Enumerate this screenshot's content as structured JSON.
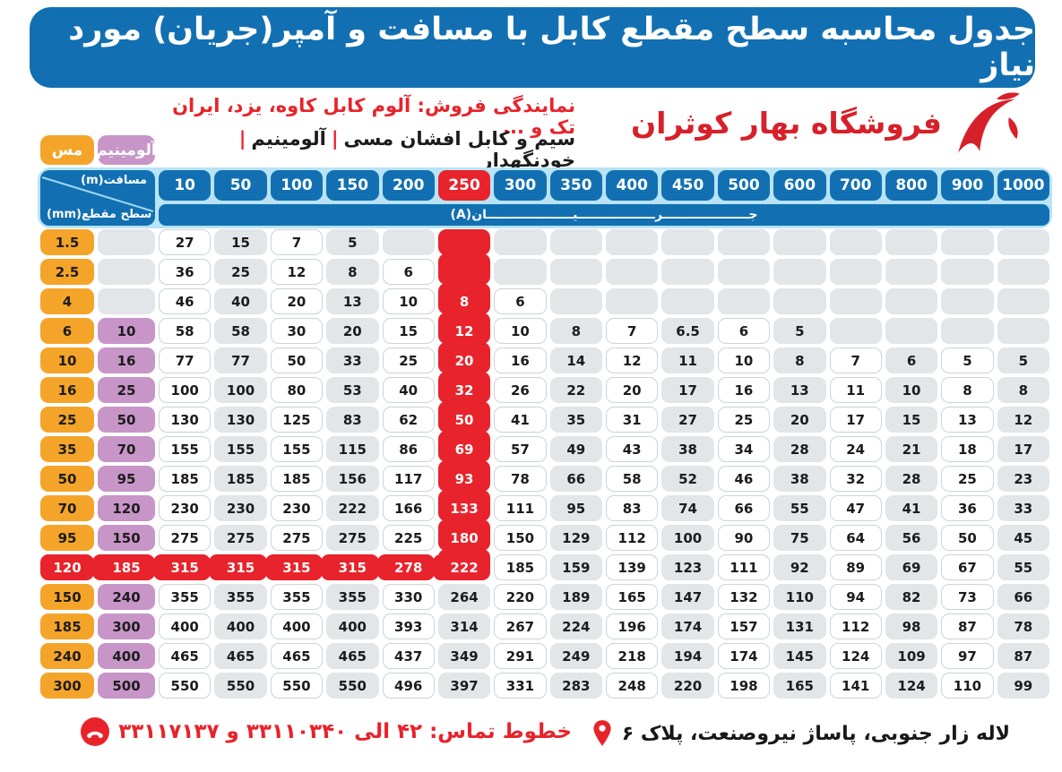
{
  "title": "جدول محاسبه سطح مقطع کابل با مسافت و آمپر(جریان) مورد نیاز",
  "header": {
    "dealer_line": "نمایندگی فروش: آلوم کابل کاوه، یزد، ایران تک و ...",
    "products_parts": [
      "سیم و کابل افشان مسی",
      "آلومینیم",
      "خودنگهدار"
    ],
    "products_separator": "|",
    "store_name": "فروشگاه بهار کوثران"
  },
  "table": {
    "copper_label": "مس",
    "aluminum_label": "آلومینیم",
    "corner_top": "مسافت(m)",
    "corner_bottom": "سطح مقطع(mm)",
    "current_label": "جــــــــــــــــــــرــــــــــــــــــیــــــــــــــــــــان(A)",
    "distances": [
      "10",
      "50",
      "100",
      "150",
      "200",
      "250",
      "300",
      "350",
      "400",
      "450",
      "500",
      "600",
      "700",
      "800",
      "900",
      "1000"
    ],
    "highlight": {
      "col_index": 5,
      "row_index": 11
    },
    "rows": [
      {
        "cu": "1.5",
        "al": "",
        "values": [
          "27",
          "15",
          "7",
          "5",
          "",
          "",
          "",
          "",
          "",
          "",
          "",
          "",
          "",
          "",
          "",
          ""
        ]
      },
      {
        "cu": "2.5",
        "al": "",
        "values": [
          "36",
          "25",
          "12",
          "8",
          "6",
          "",
          "",
          "",
          "",
          "",
          "",
          "",
          "",
          "",
          "",
          ""
        ]
      },
      {
        "cu": "4",
        "al": "",
        "values": [
          "46",
          "40",
          "20",
          "13",
          "10",
          "8",
          "6",
          "",
          "",
          "",
          "",
          "",
          "",
          "",
          "",
          ""
        ]
      },
      {
        "cu": "6",
        "al": "10",
        "values": [
          "58",
          "58",
          "30",
          "20",
          "15",
          "12",
          "10",
          "8",
          "7",
          "6.5",
          "6",
          "5",
          "",
          "",
          "",
          ""
        ]
      },
      {
        "cu": "10",
        "al": "16",
        "values": [
          "77",
          "77",
          "50",
          "33",
          "25",
          "20",
          "16",
          "14",
          "12",
          "11",
          "10",
          "8",
          "7",
          "6",
          "5",
          "5"
        ]
      },
      {
        "cu": "16",
        "al": "25",
        "values": [
          "100",
          "100",
          "80",
          "53",
          "40",
          "32",
          "26",
          "22",
          "20",
          "17",
          "16",
          "13",
          "11",
          "10",
          "8",
          "8"
        ]
      },
      {
        "cu": "25",
        "al": "50",
        "values": [
          "130",
          "130",
          "125",
          "83",
          "62",
          "50",
          "41",
          "35",
          "31",
          "27",
          "25",
          "20",
          "17",
          "15",
          "13",
          "12"
        ]
      },
      {
        "cu": "35",
        "al": "70",
        "values": [
          "155",
          "155",
          "155",
          "115",
          "86",
          "69",
          "57",
          "49",
          "43",
          "38",
          "34",
          "28",
          "24",
          "21",
          "18",
          "17"
        ]
      },
      {
        "cu": "50",
        "al": "95",
        "values": [
          "185",
          "185",
          "185",
          "156",
          "117",
          "93",
          "78",
          "66",
          "58",
          "52",
          "46",
          "38",
          "32",
          "28",
          "25",
          "23"
        ]
      },
      {
        "cu": "70",
        "al": "120",
        "values": [
          "230",
          "230",
          "230",
          "222",
          "166",
          "133",
          "111",
          "95",
          "83",
          "74",
          "66",
          "55",
          "47",
          "41",
          "36",
          "33"
        ]
      },
      {
        "cu": "95",
        "al": "150",
        "values": [
          "275",
          "275",
          "275",
          "275",
          "225",
          "180",
          "150",
          "129",
          "112",
          "100",
          "90",
          "75",
          "64",
          "56",
          "50",
          "45"
        ]
      },
      {
        "cu": "120",
        "al": "185",
        "values": [
          "315",
          "315",
          "315",
          "315",
          "278",
          "222",
          "185",
          "159",
          "139",
          "123",
          "111",
          "92",
          "89",
          "69",
          "67",
          "55"
        ]
      },
      {
        "cu": "150",
        "al": "240",
        "values": [
          "355",
          "355",
          "355",
          "355",
          "330",
          "264",
          "220",
          "189",
          "165",
          "147",
          "132",
          "110",
          "94",
          "82",
          "73",
          "66"
        ]
      },
      {
        "cu": "185",
        "al": "300",
        "values": [
          "400",
          "400",
          "400",
          "400",
          "393",
          "314",
          "267",
          "224",
          "196",
          "174",
          "157",
          "131",
          "112",
          "98",
          "87",
          "78"
        ]
      },
      {
        "cu": "240",
        "al": "400",
        "values": [
          "465",
          "465",
          "465",
          "465",
          "437",
          "349",
          "291",
          "249",
          "218",
          "194",
          "174",
          "145",
          "124",
          "109",
          "97",
          "87"
        ]
      },
      {
        "cu": "300",
        "al": "500",
        "values": [
          "550",
          "550",
          "550",
          "550",
          "496",
          "397",
          "331",
          "283",
          "248",
          "220",
          "198",
          "165",
          "141",
          "124",
          "110",
          "99"
        ]
      }
    ]
  },
  "footer": {
    "phone_label": "خطوط تماس: ۴۲ الی ۳۳۱۱۰۳۴۰ و ۳۳۱۱۷۱۳۷",
    "address": "لاله زار جنوبی، پاساژ نیروصنعت، پلاک ۶"
  },
  "colors": {
    "blue": "#1270b2",
    "light_blue": "#b7e4f7",
    "red": "#e8232b",
    "orange": "#f5a42a",
    "purple": "#c795c8",
    "gray_cell": "#e2e6e8",
    "text": "#1c1c1c"
  }
}
